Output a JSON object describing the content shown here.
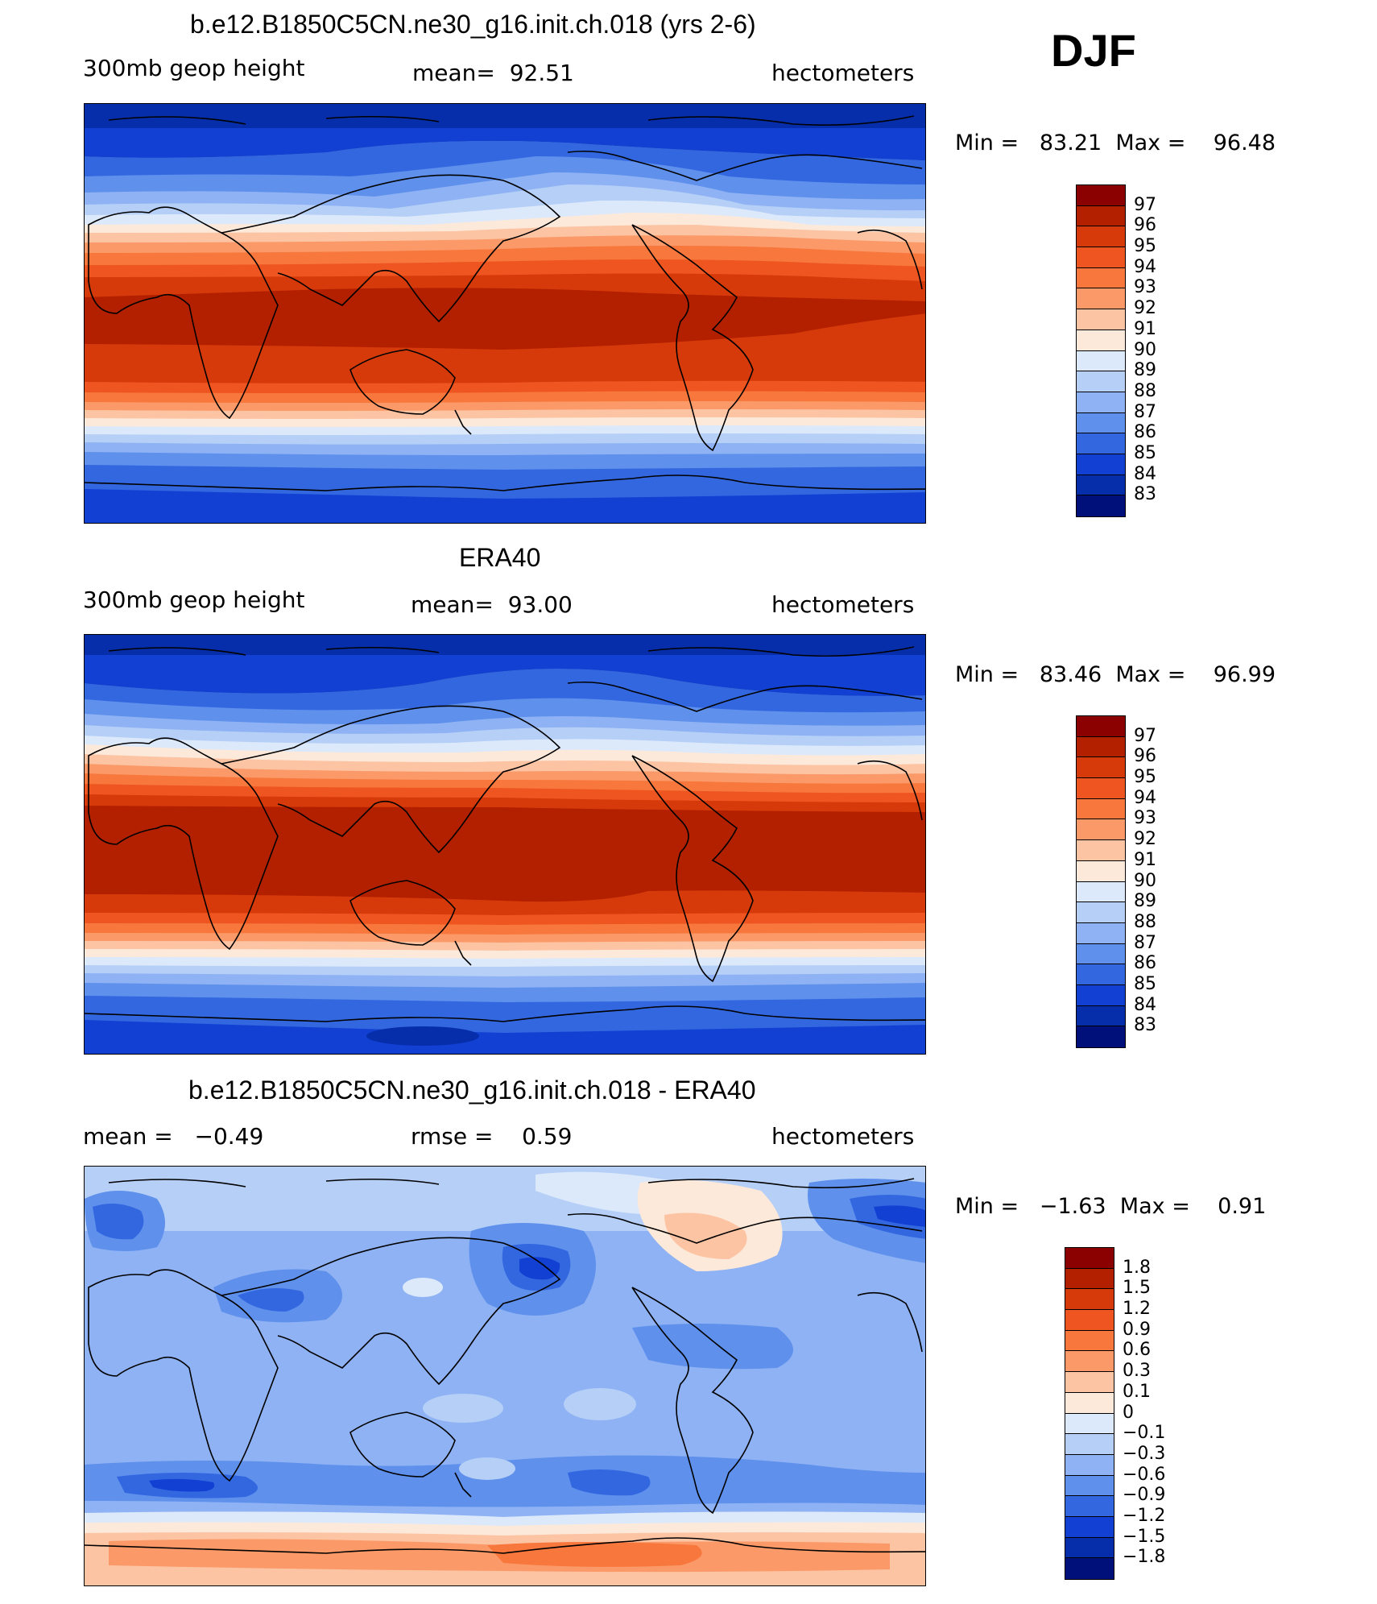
{
  "season": "DJF",
  "units": "hectometers",
  "panels": [
    {
      "title": "b.e12.B1850C5CN.ne30_g16.init.ch.018 (yrs 2-6)",
      "left": "300mb  geop  height",
      "center_label": "mean=",
      "center_value": "92.51",
      "right": "hectometers",
      "min_label": "Min =",
      "min_value": "83.21",
      "max_label": "Max =",
      "max_value": "96.48",
      "type": "abs"
    },
    {
      "title": "ERA40",
      "left": "300mb  geop  height",
      "center_label": "mean=",
      "center_value": "93.00",
      "right": "hectometers",
      "min_label": "Min =",
      "min_value": "83.46",
      "max_label": "Max =",
      "max_value": "96.99",
      "type": "abs"
    },
    {
      "title": "b.e12.B1850C5CN.ne30_g16.init.ch.018 - ERA40",
      "left_label": "mean =",
      "left_value": "−0.49",
      "center_label": "rmse =",
      "center_value": "0.59",
      "right": "hectometers",
      "min_label": "Min =",
      "min_value": "−1.63",
      "max_label": "Max =",
      "max_value": "0.91",
      "type": "diff"
    }
  ],
  "legend_abs": {
    "labels": [
      "97",
      "96",
      "95",
      "94",
      "93",
      "92",
      "91",
      "90",
      "89",
      "88",
      "87",
      "86",
      "85",
      "84",
      "83"
    ],
    "colors": [
      "#8b0000",
      "#b22000",
      "#d63a0a",
      "#ee5520",
      "#f7773d",
      "#fb9a68",
      "#fdc4a4",
      "#fde9da",
      "#dce9fb",
      "#b5cff7",
      "#8eb2f3",
      "#5e90ec",
      "#3367e0",
      "#1140d2",
      "#062eaa",
      "#00107a"
    ]
  },
  "legend_diff": {
    "labels": [
      "1.8",
      "1.5",
      "1.2",
      "0.9",
      "0.6",
      "0.3",
      "0.1",
      "0",
      "−0.1",
      "−0.3",
      "−0.6",
      "−0.9",
      "−1.2",
      "−1.5",
      "−1.8"
    ],
    "colors": [
      "#8b0000",
      "#b22000",
      "#d63a0a",
      "#ee5520",
      "#f7773d",
      "#fb9a68",
      "#fdc4a4",
      "#fde9da",
      "#dce9fb",
      "#b5cff7",
      "#8eb2f3",
      "#5e90ec",
      "#3367e0",
      "#1140d2",
      "#062eaa",
      "#00107a"
    ]
  }
}
